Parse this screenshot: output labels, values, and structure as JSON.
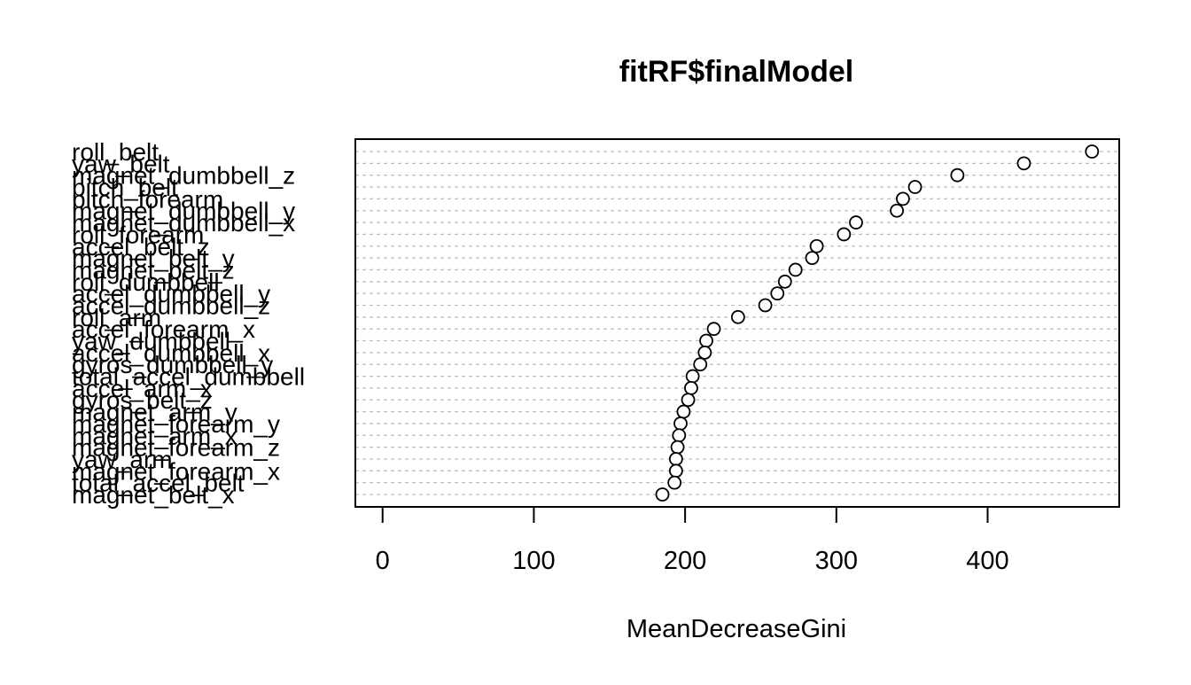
{
  "chart_data": {
    "type": "scatter",
    "title": "fitRF$finalModel",
    "xlabel": "MeanDecreaseGini",
    "ylabel": "",
    "xlim": [
      -18,
      487
    ],
    "xticks": [
      0,
      100,
      200,
      300,
      400
    ],
    "grid": "dotted-horizontal",
    "legend": "none",
    "marker": "open-circle",
    "variables": [
      {
        "name": "roll_belt",
        "value": 469
      },
      {
        "name": "yaw_belt",
        "value": 424
      },
      {
        "name": "magnet_dumbbell_z",
        "value": 380
      },
      {
        "name": "pitch_belt",
        "value": 352
      },
      {
        "name": "pitch_forearm",
        "value": 344
      },
      {
        "name": "magnet_dumbbell_y",
        "value": 340
      },
      {
        "name": "magnet_dumbbell_x",
        "value": 313
      },
      {
        "name": "roll_forearm",
        "value": 305
      },
      {
        "name": "accel_belt_z",
        "value": 287
      },
      {
        "name": "magnet_belt_y",
        "value": 284
      },
      {
        "name": "magnet_belt_z",
        "value": 273
      },
      {
        "name": "roll_dumbbell",
        "value": 266
      },
      {
        "name": "accel_dumbbell_y",
        "value": 261
      },
      {
        "name": "accel_dumbbell_z",
        "value": 253
      },
      {
        "name": "roll_arm",
        "value": 235
      },
      {
        "name": "accel_forearm_x",
        "value": 219
      },
      {
        "name": "yaw_dumbbell",
        "value": 214
      },
      {
        "name": "accel_dumbbell_x",
        "value": 213
      },
      {
        "name": "gyros_dumbbell_y",
        "value": 210
      },
      {
        "name": "total_accel_dumbbell",
        "value": 205
      },
      {
        "name": "accel_arm_x",
        "value": 204
      },
      {
        "name": "gyros_belt_z",
        "value": 202
      },
      {
        "name": "magnet_arm_y",
        "value": 199
      },
      {
        "name": "magnet_forearm_y",
        "value": 197
      },
      {
        "name": "magnet_arm_x",
        "value": 196
      },
      {
        "name": "magnet_forearm_z",
        "value": 195
      },
      {
        "name": "yaw_arm",
        "value": 194
      },
      {
        "name": "magnet_forearm_x",
        "value": 194
      },
      {
        "name": "total_accel_belt",
        "value": 193
      },
      {
        "name": "magnet_belt_x",
        "value": 185
      }
    ]
  }
}
